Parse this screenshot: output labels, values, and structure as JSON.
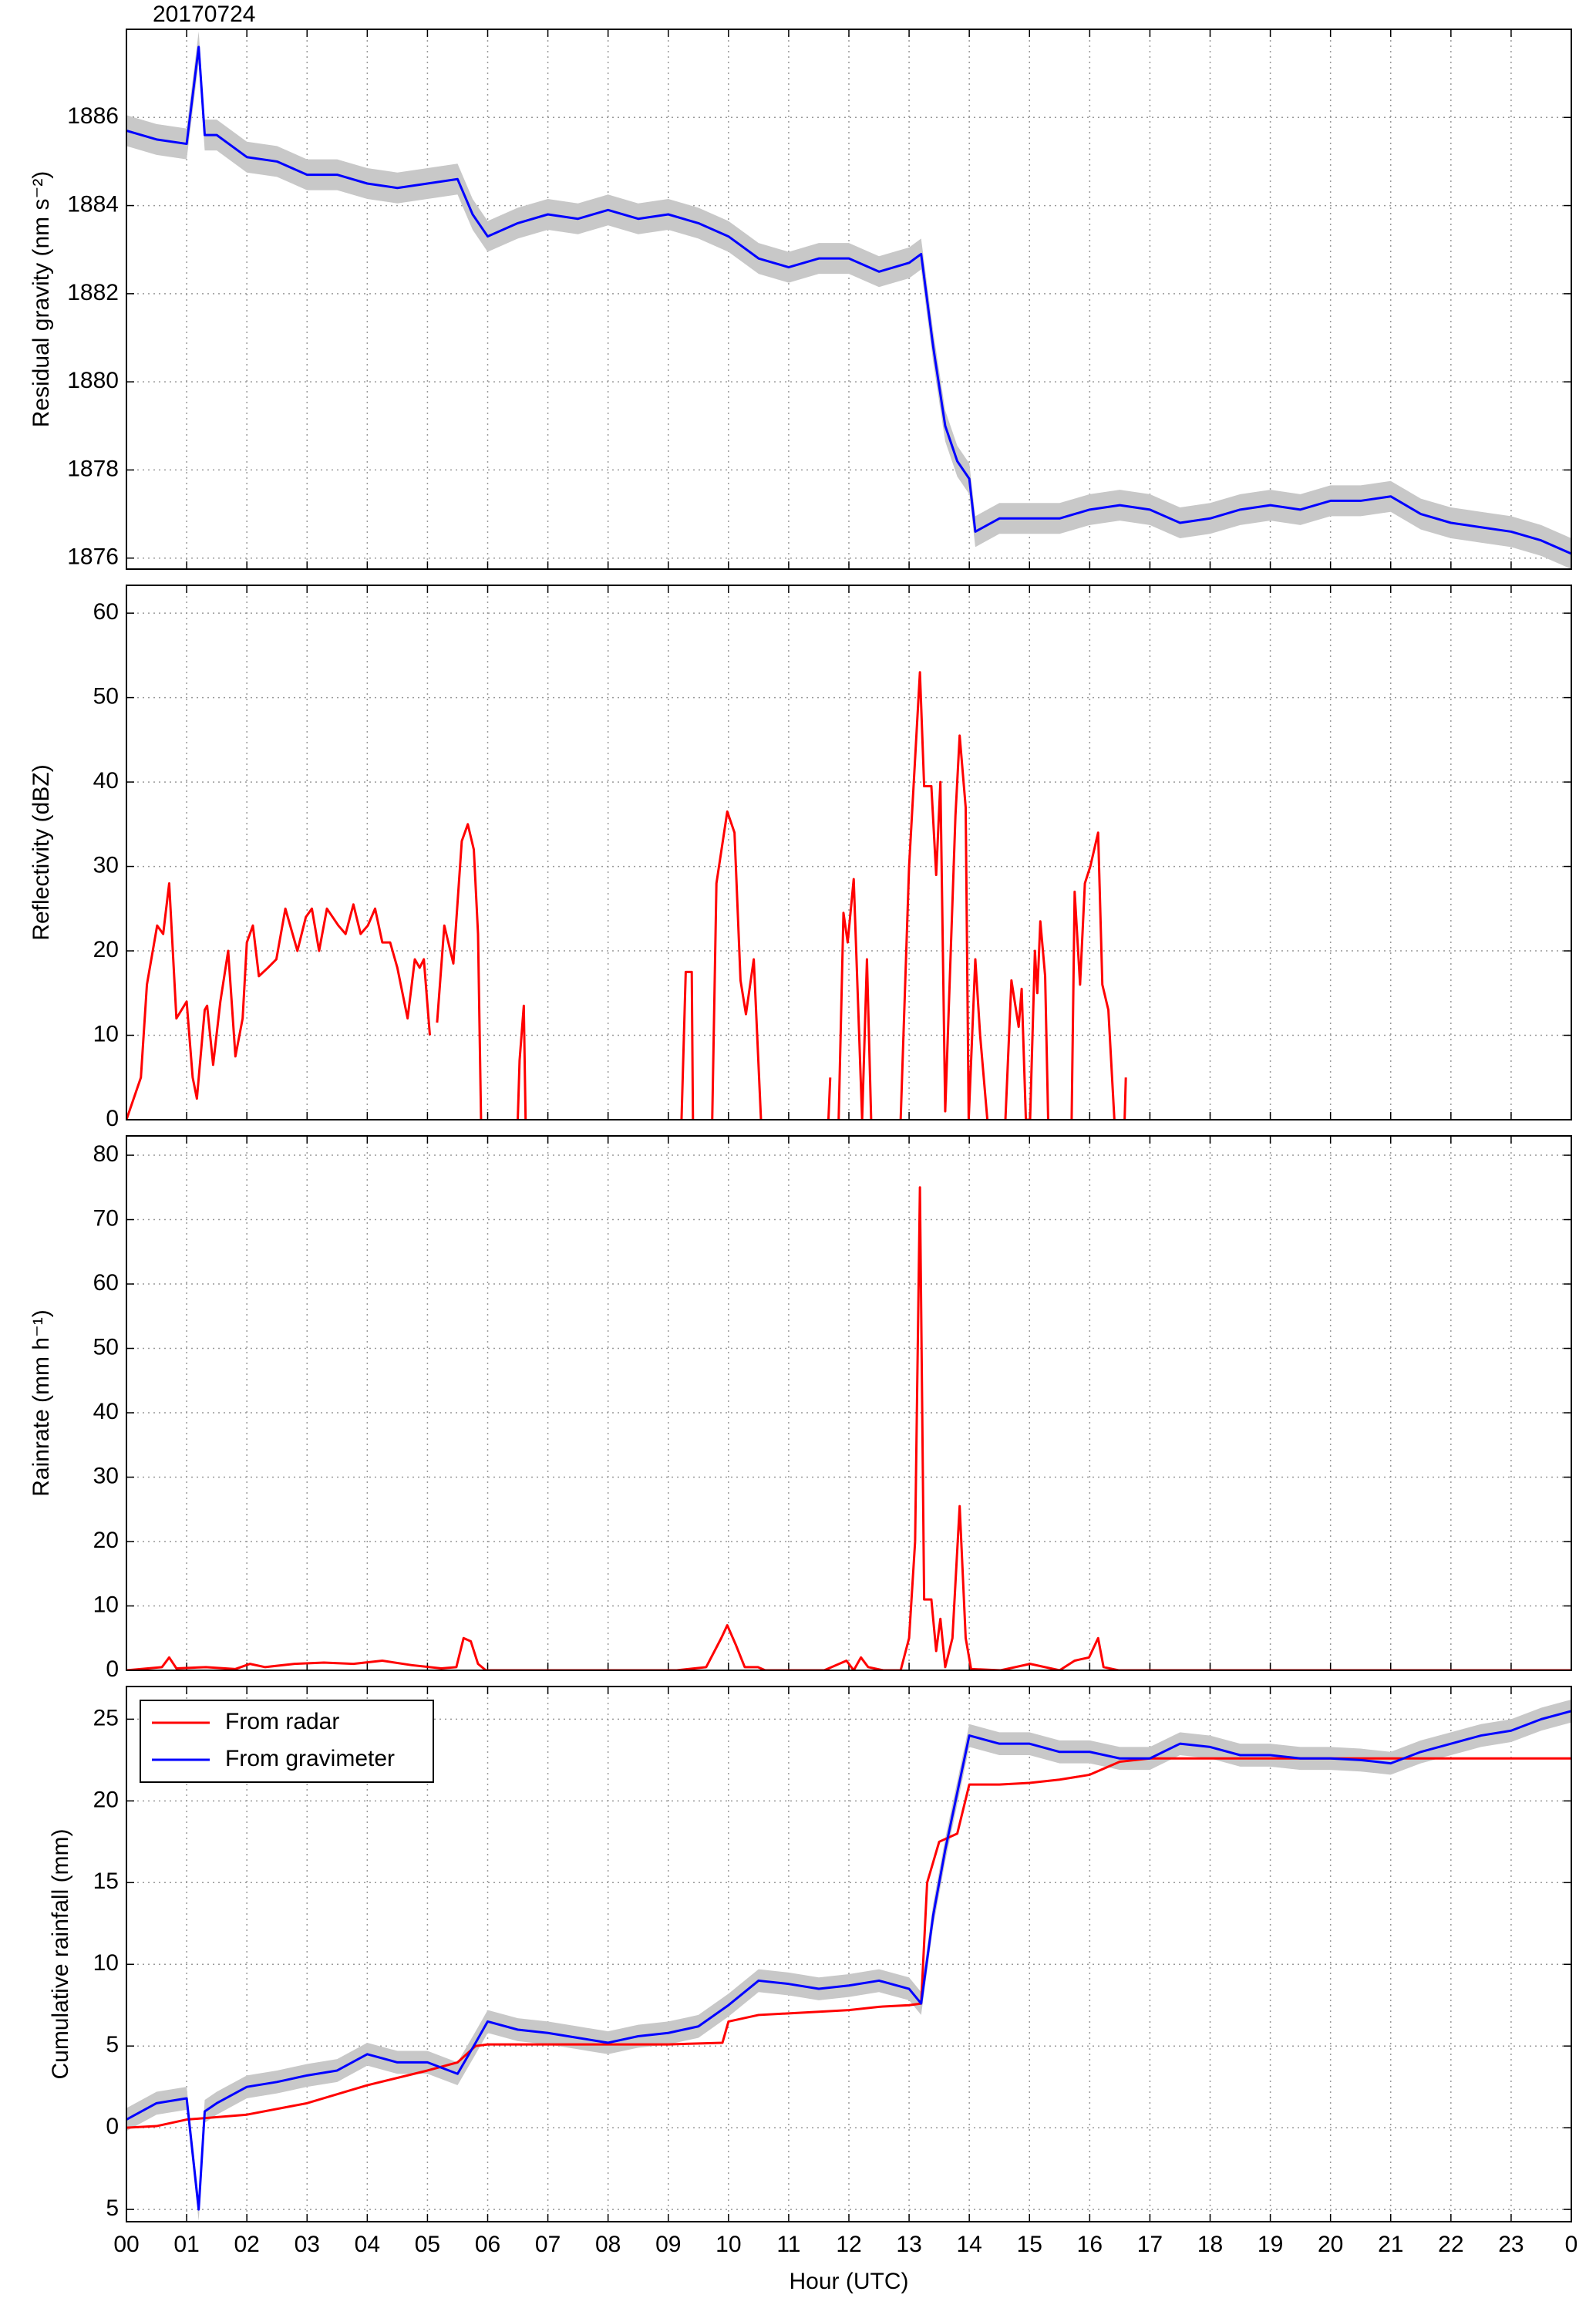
{
  "chart_data": [
    {
      "type": "line",
      "ylabel": "Residual gravity (nm s⁻²)",
      "annotation": "20170724",
      "ylim": [
        1875.75,
        1888
      ],
      "yticks": [
        1876,
        1878,
        1880,
        1882,
        1884,
        1886
      ],
      "grid": true,
      "series": [
        {
          "color": "#0000ff",
          "band_color": "#c8c8c8",
          "uncertainty": 0.35,
          "x": [
            0,
            0.5,
            1,
            1.2,
            1.3,
            1.5,
            2,
            2.5,
            3,
            3.5,
            4,
            4.5,
            5,
            5.5,
            5.75,
            6,
            6.5,
            7,
            7.5,
            8,
            8.5,
            9,
            9.5,
            10,
            10.5,
            11,
            11.5,
            12,
            12.5,
            13,
            13.2,
            13.4,
            13.6,
            13.8,
            14,
            14.1,
            14.5,
            15,
            15.5,
            16,
            16.5,
            17,
            17.5,
            18,
            18.5,
            19,
            19.5,
            20,
            20.5,
            21,
            21.5,
            22,
            22.5,
            23,
            23.5,
            24
          ],
          "values": [
            1885.7,
            1885.5,
            1885.4,
            1887.6,
            1885.6,
            1885.6,
            1885.1,
            1885.0,
            1884.7,
            1884.7,
            1884.5,
            1884.4,
            1884.5,
            1884.6,
            1883.8,
            1883.3,
            1883.6,
            1883.8,
            1883.7,
            1883.9,
            1883.7,
            1883.8,
            1883.6,
            1883.3,
            1882.8,
            1882.6,
            1882.8,
            1882.8,
            1882.5,
            1882.7,
            1882.9,
            1880.8,
            1879.0,
            1878.2,
            1877.8,
            1876.6,
            1876.9,
            1876.9,
            1876.9,
            1877.1,
            1877.2,
            1877.1,
            1876.8,
            1876.9,
            1877.1,
            1877.2,
            1877.1,
            1877.3,
            1877.3,
            1877.4,
            1877.0,
            1876.8,
            1876.7,
            1876.6,
            1876.4,
            1876.1
          ]
        }
      ]
    },
    {
      "type": "line",
      "ylabel": "Reflectivity (dBZ)",
      "ylim": [
        0,
        63.3
      ],
      "yticks": [
        0,
        10,
        20,
        30,
        40,
        50,
        60
      ],
      "grid": true,
      "series": [
        {
          "color": "#ff0000",
          "x": [
            0,
            0.24,
            0.34,
            0.51,
            0.61,
            0.71,
            0.83,
            1.0,
            1.1,
            1.17,
            1.3,
            1.34,
            1.44,
            1.56,
            1.69,
            1.81,
            1.93,
            2.0,
            2.1,
            2.2,
            2.35,
            2.49,
            2.64,
            2.84,
            2.98,
            3.08,
            3.2,
            3.33,
            3.52,
            3.64,
            3.77,
            3.89,
            4.01,
            4.13,
            4.25,
            4.38,
            4.5,
            4.67,
            4.79,
            4.87,
            4.94,
            5.04,
            5.1,
            5.16,
            5.28,
            5.43,
            5.57,
            5.67,
            5.77,
            5.84,
            5.89,
            6.2,
            6.5,
            6.53,
            6.6,
            6.63,
            8,
            9.22,
            9.29,
            9.39,
            9.41,
            9.55,
            9.73,
            9.8,
            9.98,
            10.1,
            10.2,
            10.29,
            10.42,
            10.54,
            11,
            11.66,
            11.69,
            11.75,
            11.83,
            11.91,
            11.98,
            12.08,
            12.22,
            12.3,
            12.37,
            12.6,
            12.86,
            13.0,
            13.18,
            13.25,
            13.37,
            13.45,
            13.52,
            13.6,
            13.77,
            13.84,
            13.94,
            13.99,
            14.1,
            14.18,
            14.3,
            14.45,
            14.6,
            14.7,
            14.82,
            14.87,
            14.94,
            15.01,
            15.09,
            15.13,
            15.18,
            15.26,
            15.31,
            15.5,
            15.7,
            15.75,
            15.84,
            15.92,
            16.01,
            16.14,
            16.21,
            16.31,
            16.41,
            16.5,
            16.58,
            16.6
          ],
          "values": [
            0,
            5,
            16,
            23,
            22,
            28,
            12,
            14,
            5,
            2.5,
            13,
            13.5,
            6.5,
            14,
            20,
            7.5,
            12,
            21,
            23,
            17,
            18,
            19,
            25,
            20,
            24,
            25,
            20,
            25,
            23,
            22,
            25.5,
            22,
            23,
            25,
            21,
            21,
            18,
            12,
            19,
            18,
            19,
            10,
            null,
            11.5,
            23,
            18.5,
            33,
            35,
            32,
            22,
            0,
            null,
            0,
            7,
            13.5,
            0,
            null,
            0,
            17.5,
            17.5,
            0,
            null,
            0,
            28,
            36.5,
            34,
            16.5,
            12.5,
            19,
            0,
            null,
            0,
            5,
            null,
            0,
            24.5,
            21,
            28.5,
            0,
            19,
            0,
            null,
            0,
            30,
            53,
            39.5,
            39.5,
            29,
            40,
            1,
            36,
            45.5,
            37,
            0,
            19,
            10,
            0,
            null,
            0,
            16.5,
            11,
            15.5,
            0,
            0,
            20,
            15,
            23.5,
            17,
            0,
            null,
            0,
            27,
            16,
            28,
            30,
            34,
            16,
            13,
            0,
            null,
            0,
            5
          ]
        }
      ]
    },
    {
      "type": "line",
      "ylabel": "Rainrate (mm h⁻¹)",
      "ylim": [
        0,
        83
      ],
      "yticks": [
        0,
        10,
        20,
        30,
        40,
        50,
        60,
        70,
        80
      ],
      "grid": true,
      "series": [
        {
          "color": "#ff0000",
          "x": [
            0,
            0.59,
            0.71,
            0.83,
            1.32,
            1.81,
            2.05,
            2.3,
            2.79,
            3.28,
            3.77,
            4.25,
            4.74,
            5.23,
            5.48,
            5.6,
            5.72,
            5.84,
            5.97,
            6.7,
            9.14,
            9.63,
            9.88,
            9.98,
            10.12,
            10.27,
            10.49,
            10.61,
            11.59,
            11.96,
            12.08,
            12.2,
            12.32,
            12.57,
            12.86,
            13.0,
            13.1,
            13.18,
            13.25,
            13.37,
            13.45,
            13.52,
            13.6,
            13.72,
            13.84,
            13.94,
            14.03,
            14.52,
            15.01,
            15.5,
            15.75,
            15.99,
            16.14,
            16.23,
            16.48,
            24
          ],
          "values": [
            0,
            0.5,
            2,
            0.3,
            0.5,
            0.2,
            1,
            0.5,
            1,
            1.2,
            1,
            1.5,
            0.8,
            0.3,
            0.5,
            5,
            4.5,
            1,
            0,
            0,
            0,
            0.5,
            5,
            7,
            4,
            0.5,
            0.5,
            0,
            0,
            1.5,
            0,
            2,
            0.5,
            0,
            0,
            5,
            20,
            75,
            11,
            11,
            3,
            8,
            0.5,
            5,
            25.5,
            5,
            0.2,
            0,
            1,
            0,
            1.5,
            2,
            5,
            0.5,
            0,
            0
          ]
        }
      ]
    },
    {
      "type": "line",
      "ylabel": "Cumulative rainfall (mm)",
      "xlabel": "Hour (UTC)",
      "xlim": [
        0,
        24
      ],
      "xticks": [
        {
          "value": 0,
          "label": "00"
        },
        {
          "value": 1,
          "label": "01"
        },
        {
          "value": 2,
          "label": "02"
        },
        {
          "value": 3,
          "label": "03"
        },
        {
          "value": 4,
          "label": "04"
        },
        {
          "value": 5,
          "label": "05"
        },
        {
          "value": 6,
          "label": "06"
        },
        {
          "value": 7,
          "label": "07"
        },
        {
          "value": 8,
          "label": "08"
        },
        {
          "value": 9,
          "label": "09"
        },
        10,
        11,
        12,
        13,
        14,
        15,
        16,
        17,
        18,
        19,
        20,
        21,
        22,
        23,
        {
          "value": 24,
          "label": "0"
        }
      ],
      "ylim": [
        -5.75,
        27
      ],
      "yticks": [
        {
          "value": -5,
          "label": "5"
        },
        0,
        5,
        10,
        15,
        20,
        25
      ],
      "grid": true,
      "legend": "upper-left",
      "series": [
        {
          "name": "From radar",
          "color": "#ff0000",
          "x": [
            0,
            0.5,
            1,
            2,
            3,
            4,
            5,
            5.5,
            5.8,
            6,
            7,
            8,
            9,
            9.9,
            10,
            10.5,
            11,
            12,
            12.5,
            13,
            13.2,
            13.3,
            13.5,
            13.8,
            14,
            14.5,
            15,
            15.5,
            16,
            16.5,
            17,
            24
          ],
          "values": [
            0,
            0.1,
            0.5,
            0.8,
            1.5,
            2.6,
            3.5,
            4,
            5,
            5.1,
            5.1,
            5.1,
            5.1,
            5.2,
            6.5,
            6.9,
            7.0,
            7.2,
            7.4,
            7.5,
            7.6,
            15,
            17.5,
            18,
            21,
            21,
            21.1,
            21.3,
            21.6,
            22.4,
            22.6,
            22.6
          ]
        },
        {
          "name": "From gravimeter",
          "color": "#0000ff",
          "band_color": "#c8c8c8",
          "uncertainty": 0.7,
          "x": [
            0,
            0.5,
            1,
            1.2,
            1.3,
            1.5,
            2,
            2.5,
            3,
            3.5,
            4,
            4.5,
            5,
            5.5,
            5.8,
            6,
            6.5,
            7,
            7.5,
            8,
            8.5,
            9,
            9.5,
            10,
            10.5,
            11,
            11.5,
            12,
            12.5,
            13,
            13.2,
            13.4,
            13.6,
            13.8,
            14,
            14.5,
            15,
            15.5,
            16,
            16.5,
            17,
            17.5,
            18,
            18.5,
            19,
            19.5,
            20,
            20.5,
            21,
            21.5,
            22,
            22.5,
            23,
            23.5,
            24
          ],
          "values": [
            0.5,
            1.5,
            1.8,
            -5,
            1,
            1.5,
            2.5,
            2.8,
            3.2,
            3.5,
            4.5,
            4,
            4,
            3.3,
            5.2,
            6.5,
            6,
            5.8,
            5.5,
            5.2,
            5.6,
            5.8,
            6.2,
            7.5,
            9,
            8.8,
            8.5,
            8.7,
            9,
            8.5,
            7.6,
            13,
            17,
            20.5,
            24,
            23.5,
            23.5,
            23,
            23,
            22.6,
            22.6,
            23.5,
            23.3,
            22.8,
            22.8,
            22.6,
            22.6,
            22.5,
            22.3,
            23,
            23.5,
            24,
            24.3,
            25,
            25.5
          ]
        }
      ]
    }
  ]
}
